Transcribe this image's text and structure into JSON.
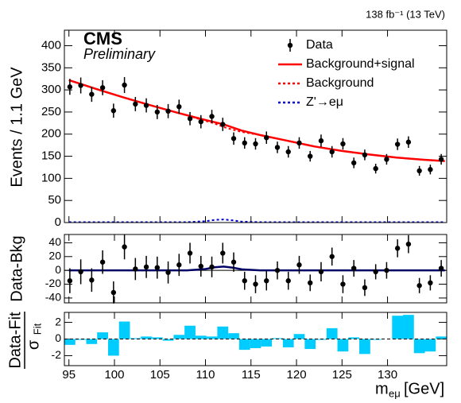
{
  "chart_data": [
    {
      "type": "scatter",
      "lumi_label": "138 fb⁻¹ (13 TeV)",
      "experiment": "CMS",
      "status": "Preliminary",
      "ylabel": "Events / 1.1 GeV",
      "xlim": [
        94.5,
        136.5
      ],
      "xticks": [
        95,
        100,
        105,
        110,
        115,
        120,
        125,
        130
      ],
      "ylim": [
        0,
        435
      ],
      "yticks": [
        0,
        50,
        100,
        150,
        200,
        250,
        300,
        350,
        400
      ],
      "series": [
        {
          "name": "Data",
          "style": "points",
          "color": "#000000",
          "x": [
            95.1,
            96.3,
            97.5,
            98.7,
            99.9,
            101.1,
            102.3,
            103.5,
            104.7,
            105.9,
            107.1,
            108.3,
            109.5,
            110.7,
            111.9,
            113.1,
            114.3,
            115.5,
            116.7,
            117.9,
            119.1,
            120.3,
            121.5,
            122.7,
            123.9,
            125.1,
            126.3,
            127.5,
            128.7,
            129.9,
            131.1,
            132.3,
            133.5,
            134.7,
            135.9
          ],
          "values": [
            307,
            310,
            290,
            305,
            253,
            311,
            268,
            265,
            250,
            252,
            262,
            235,
            228,
            240,
            222,
            190,
            180,
            178,
            192,
            170,
            160,
            180,
            150,
            185,
            160,
            178,
            135,
            153,
            122,
            143,
            177,
            182,
            117,
            120,
            143
          ],
          "errors": [
            18,
            18,
            17,
            17,
            16,
            18,
            16,
            16,
            16,
            16,
            16,
            15,
            15,
            15,
            15,
            14,
            13,
            13,
            14,
            13,
            13,
            13,
            12,
            14,
            13,
            13,
            12,
            12,
            11,
            12,
            13,
            13,
            11,
            11,
            12
          ]
        },
        {
          "name": "Background+signal",
          "style": "solid",
          "color": "#ff0000",
          "x": [
            95,
            98,
            101,
            104,
            107,
            110,
            111,
            112,
            113,
            114,
            116,
            119,
            122,
            125,
            128,
            131,
            134,
            136.3
          ],
          "values": [
            322,
            302,
            283,
            265,
            248,
            232,
            227,
            222,
            215,
            208,
            198,
            185,
            172,
            162,
            154,
            147,
            142,
            139
          ]
        },
        {
          "name": "Background",
          "style": "dotted",
          "color": "#ff0000",
          "x": [
            95,
            98,
            101,
            104,
            107,
            110,
            111,
            112,
            113,
            114,
            116,
            119,
            122,
            125,
            128,
            131,
            134,
            136.3
          ],
          "values": [
            322,
            302,
            283,
            265,
            248,
            230,
            224,
            216,
            210,
            205,
            198,
            185,
            172,
            162,
            154,
            147,
            142,
            139
          ]
        },
        {
          "name": "Z'→eμ",
          "style": "dotted",
          "color": "#0000cc",
          "x": [
            95,
            108,
            110,
            111,
            112,
            113,
            114,
            116,
            136.3
          ],
          "values": [
            1,
            1,
            3,
            6,
            7,
            5,
            2,
            1,
            1
          ]
        }
      ]
    },
    {
      "type": "scatter",
      "ylabel": "Data-Bkg",
      "xlim": [
        94.5,
        136.5
      ],
      "xticks": [
        95,
        100,
        105,
        110,
        115,
        120,
        125,
        130
      ],
      "ylim": [
        -47,
        52
      ],
      "yticks": [
        -40,
        -20,
        0,
        20,
        40
      ],
      "series": [
        {
          "style": "points",
          "color": "#000000",
          "x": [
            95.1,
            96.3,
            97.5,
            98.7,
            99.9,
            101.1,
            102.3,
            103.5,
            104.7,
            105.9,
            107.1,
            108.3,
            109.5,
            110.7,
            111.9,
            113.1,
            114.3,
            115.5,
            116.7,
            117.9,
            119.1,
            120.3,
            121.5,
            122.7,
            123.9,
            125.1,
            126.3,
            127.5,
            128.7,
            129.9,
            131.1,
            132.3,
            133.5,
            134.7,
            135.9
          ],
          "values": [
            -15,
            -2,
            -14,
            12,
            -32,
            34,
            2,
            5,
            4,
            -3,
            8,
            25,
            6,
            5,
            25,
            12,
            -15,
            -20,
            -15,
            0,
            -15,
            8,
            -18,
            -2,
            20,
            -20,
            3,
            -25,
            -2,
            0,
            32,
            38,
            -22,
            -18,
            3
          ],
          "errors": [
            18,
            18,
            17,
            17,
            16,
            18,
            16,
            16,
            16,
            16,
            16,
            15,
            15,
            15,
            15,
            14,
            13,
            13,
            14,
            13,
            13,
            13,
            12,
            14,
            13,
            13,
            12,
            12,
            11,
            12,
            13,
            13,
            11,
            11,
            12
          ]
        },
        {
          "style": "solid",
          "color": "#000066",
          "x": [
            95,
            108,
            110,
            111,
            112,
            113,
            114,
            116,
            136.3
          ],
          "values": [
            0,
            0,
            2,
            4.5,
            5.5,
            4,
            1.5,
            0,
            0
          ]
        }
      ]
    },
    {
      "type": "bar",
      "ylabel": {
        "numerator": "Data-Fit",
        "symbol": "σ",
        "subscript": "Fit"
      },
      "xlabel": {
        "symbol": "m",
        "subscript": "eμ",
        "unit": "[GeV]"
      },
      "xlim": [
        94.5,
        136.5
      ],
      "xticks": [
        95,
        100,
        105,
        110,
        115,
        120,
        125,
        130
      ],
      "ylim": [
        -3.2,
        3.2
      ],
      "yticks": [
        -2,
        0,
        2
      ],
      "color": "#00ccff",
      "x": [
        95.1,
        96.3,
        97.5,
        98.7,
        99.9,
        101.1,
        102.3,
        103.5,
        104.7,
        105.9,
        107.1,
        108.3,
        109.5,
        110.7,
        111.9,
        113.1,
        114.3,
        115.5,
        116.7,
        117.9,
        119.1,
        120.3,
        121.5,
        122.7,
        123.9,
        125.1,
        126.3,
        127.5,
        128.7,
        129.9,
        131.1,
        132.3,
        133.5,
        134.7,
        135.9
      ],
      "values": [
        -0.7,
        -0.1,
        -0.6,
        0.8,
        -2.0,
        2.1,
        0.1,
        0.3,
        0.2,
        -0.2,
        0.5,
        1.6,
        0.4,
        0.3,
        1.5,
        0.7,
        -1.3,
        -1.1,
        -0.9,
        0.1,
        -1.0,
        0.6,
        -1.2,
        -0.1,
        1.3,
        -1.5,
        0.2,
        -1.8,
        -0.1,
        0.0,
        2.8,
        2.9,
        -1.7,
        -1.5,
        0.3
      ]
    }
  ]
}
